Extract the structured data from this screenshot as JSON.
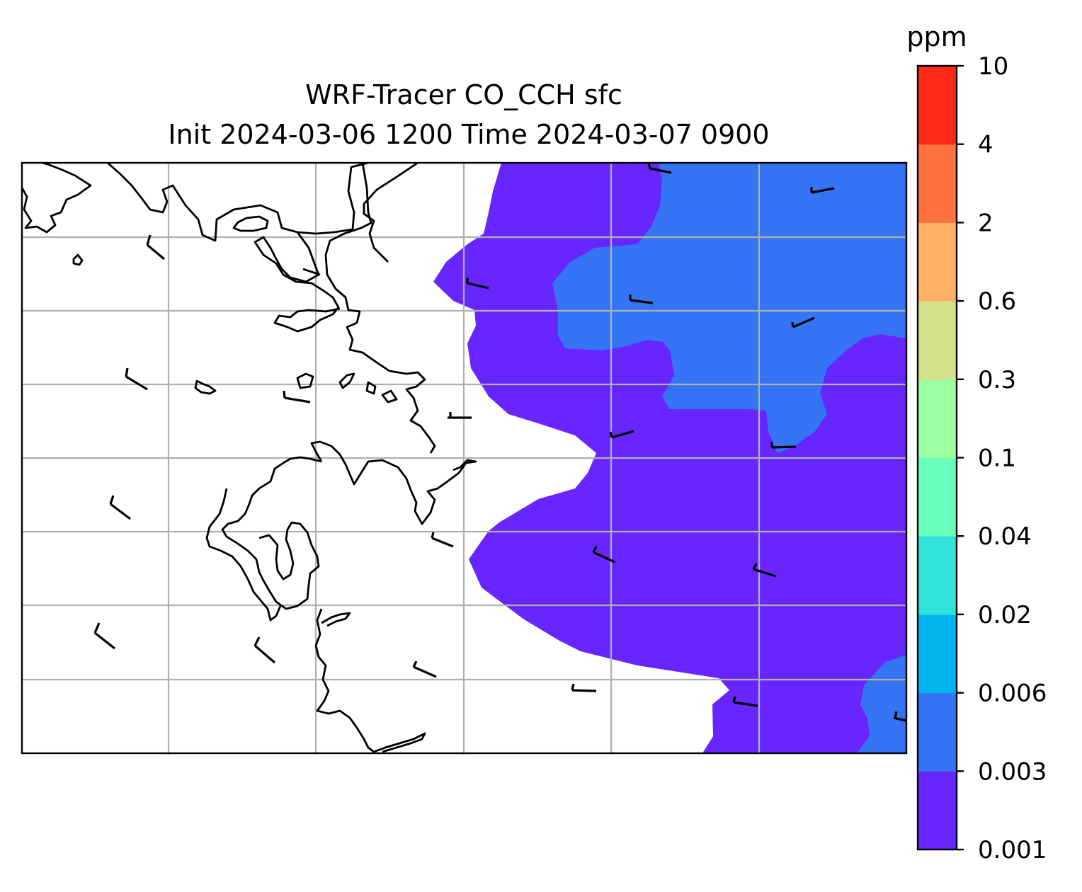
{
  "title": {
    "line1": "WRF-Tracer CO_CCH sfc",
    "line2": "Init 2024-03-06 1200 Time 2024-03-07 0900"
  },
  "colorbar": {
    "unit": "ppm",
    "levels": [
      "0.001",
      "0.003",
      "0.006",
      "0.02",
      "0.04",
      "0.1",
      "0.3",
      "0.6",
      "2",
      "4",
      "10"
    ],
    "colors": [
      "#6726ff",
      "#3574f5",
      "#00b5ee",
      "#30e3d8",
      "#66ffbb",
      "#9cffa1",
      "#d2e28a",
      "#ffb264",
      "#ff713e",
      "#ff2b18"
    ]
  },
  "map": {
    "fill_colors": {
      "band_0001_0003": "#6726ff",
      "band_0003_0006": "#3574f5"
    },
    "coastline_color": "#000000",
    "gridline_color": "#b0b0b0",
    "wind_barb_color": "#000000",
    "gridlines": true
  }
}
